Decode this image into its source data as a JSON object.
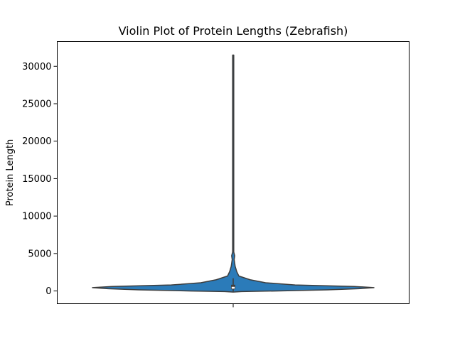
{
  "chart_data": {
    "type": "violin",
    "title": "Violin Plot of Protein Lengths (Zebrafish)",
    "xlabel": "",
    "ylabel": "Protein Length",
    "ylim": [
      -1700,
      33300
    ],
    "yticks": [
      0,
      5000,
      10000,
      15000,
      20000,
      25000,
      30000
    ],
    "ytick_labels": [
      "0",
      "5000",
      "10000",
      "15000",
      "20000",
      "25000",
      "30000"
    ],
    "categories": [
      ""
    ],
    "grid": false,
    "legend": "none",
    "violin": {
      "color": "#2b7bb9",
      "edge_color": "#3d3d3d",
      "min": -80,
      "max": 31500,
      "quartile_1": 230,
      "median": 430,
      "quartile_3": 830,
      "whisker_low": -80,
      "whisker_high": 1700,
      "density_profile": [
        {
          "y": -150,
          "half_width_fraction": 0.0
        },
        {
          "y": -80,
          "half_width_fraction": 0.06
        },
        {
          "y": 0,
          "half_width_fraction": 0.3
        },
        {
          "y": 150,
          "half_width_fraction": 0.67
        },
        {
          "y": 300,
          "half_width_fraction": 0.89
        },
        {
          "y": 450,
          "half_width_fraction": 1.0
        },
        {
          "y": 600,
          "half_width_fraction": 0.86
        },
        {
          "y": 800,
          "half_width_fraction": 0.44
        },
        {
          "y": 1100,
          "half_width_fraction": 0.23
        },
        {
          "y": 1500,
          "half_width_fraction": 0.12
        },
        {
          "y": 2000,
          "half_width_fraction": 0.04
        },
        {
          "y": 2600,
          "half_width_fraction": 0.025
        },
        {
          "y": 3300,
          "half_width_fraction": 0.014
        },
        {
          "y": 4200,
          "half_width_fraction": 0.007
        },
        {
          "y": 4700,
          "half_width_fraction": 0.011
        },
        {
          "y": 5200,
          "half_width_fraction": 0.004
        },
        {
          "y": 8000,
          "half_width_fraction": 0.004
        },
        {
          "y": 31500,
          "half_width_fraction": 0.004
        }
      ]
    }
  }
}
